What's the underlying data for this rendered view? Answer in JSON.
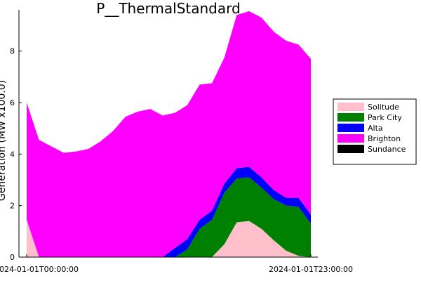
{
  "chart_data": {
    "type": "area",
    "title": "P__ThermalStandard",
    "xlabel": "",
    "ylabel": "Generation (MW x100.0)",
    "x": [
      "00",
      "01",
      "02",
      "03",
      "04",
      "05",
      "06",
      "07",
      "08",
      "09",
      "10",
      "11",
      "12",
      "13",
      "14",
      "15",
      "16",
      "17",
      "18",
      "19",
      "20",
      "21",
      "22",
      "23"
    ],
    "x_tick_labels": [
      "2024-01-01T00:00:00",
      "2024-01-01T23:00:00"
    ],
    "ylim": [
      0,
      9.6
    ],
    "y_ticks": [
      0,
      2,
      4,
      6,
      8
    ],
    "grid": false,
    "legend_position": "right",
    "series": [
      {
        "name": "Solitude",
        "color": "#ffc0cb",
        "values": [
          1.45,
          0,
          0,
          0,
          0,
          0,
          0,
          0,
          0,
          0,
          0,
          0,
          0,
          0,
          0,
          0,
          0.5,
          1.35,
          1.4,
          1.1,
          0.65,
          0.25,
          0.05,
          0
        ]
      },
      {
        "name": "Park City",
        "color": "#008000",
        "values": [
          0,
          0,
          0,
          0,
          0,
          0,
          0,
          0,
          0,
          0,
          0,
          0,
          0,
          0.3,
          1.1,
          1.45,
          2.0,
          1.7,
          1.7,
          1.6,
          1.6,
          1.75,
          1.9,
          1.3
        ]
      },
      {
        "name": "Alta",
        "color": "#0000ff",
        "values": [
          0,
          0,
          0,
          0,
          0,
          0,
          0,
          0,
          0,
          0,
          0,
          0,
          0.35,
          0.4,
          0.35,
          0.35,
          0.35,
          0.4,
          0.4,
          0.4,
          0.35,
          0.3,
          0.35,
          0.35
        ]
      },
      {
        "name": "Brighton",
        "color": "#ff00ff",
        "values": [
          4.55,
          4.55,
          4.3,
          4.05,
          4.1,
          4.2,
          4.5,
          4.9,
          5.45,
          5.65,
          5.75,
          5.5,
          5.25,
          5.2,
          5.25,
          4.95,
          4.9,
          5.95,
          6.05,
          6.2,
          6.15,
          6.1,
          5.95,
          6.05
        ]
      },
      {
        "name": "Sundance",
        "color": "#000000",
        "values": [
          0,
          0,
          0,
          0,
          0,
          0,
          0,
          0,
          0,
          0,
          0,
          0,
          0,
          0,
          0,
          0,
          0,
          0,
          0,
          0,
          0,
          0,
          0,
          0
        ]
      }
    ]
  }
}
